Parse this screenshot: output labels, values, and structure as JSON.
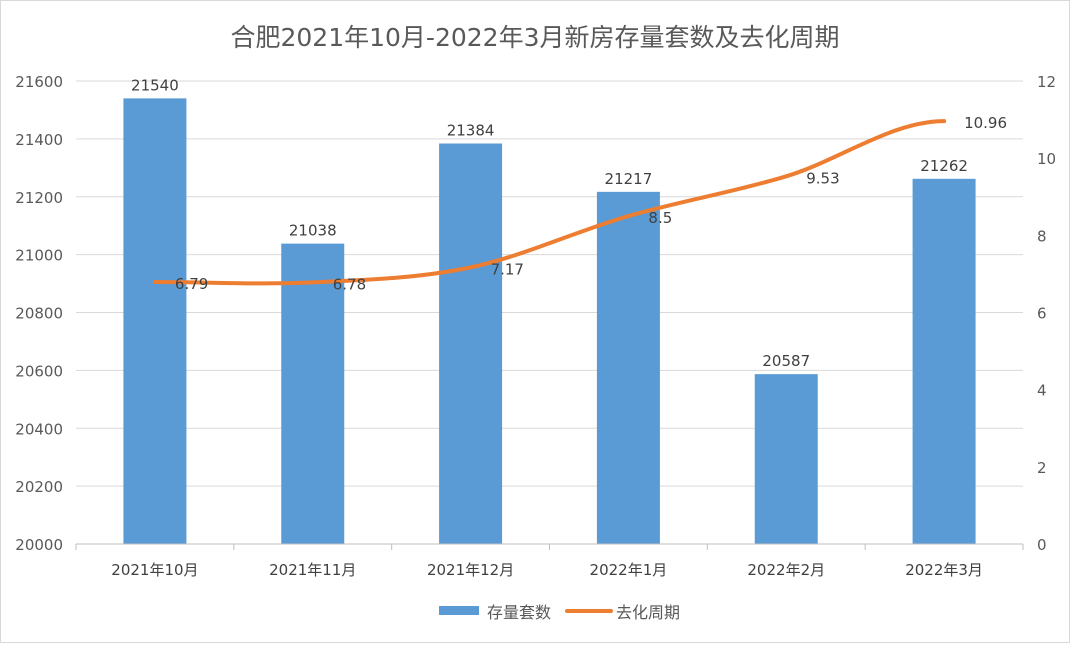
{
  "chart_data": {
    "type": "bar+line",
    "title": "合肥2021年10月-2022年3月新房存量套数及去化周期",
    "categories": [
      "2021年10月",
      "2021年11月",
      "2021年12月",
      "2022年1月",
      "2022年2月",
      "2022年3月"
    ],
    "series": [
      {
        "name": "存量套数",
        "type": "bar",
        "axis": "left",
        "color": "#5b9bd5",
        "values": [
          21540,
          21038,
          21384,
          21217,
          20587,
          21262
        ]
      },
      {
        "name": "去化周期",
        "type": "line",
        "axis": "right",
        "color": "#ed7d31",
        "values": [
          6.79,
          6.78,
          7.17,
          8.5,
          9.53,
          10.96
        ]
      }
    ],
    "y_left": {
      "range": [
        20000,
        21600
      ],
      "ticks": [
        20000,
        20200,
        20400,
        20600,
        20800,
        21000,
        21200,
        21400,
        21600
      ]
    },
    "y_right": {
      "range": [
        0,
        12
      ],
      "ticks": [
        0,
        2,
        4,
        6,
        8,
        10,
        12
      ]
    },
    "grid": true,
    "legend": "bottom",
    "data_labels": {
      "bars": [
        "21540",
        "21038",
        "21384",
        "21217",
        "20587",
        "21262"
      ],
      "line": [
        "6.79",
        "6.78",
        "7.17",
        "8.5",
        "9.53",
        "10.96"
      ]
    }
  }
}
